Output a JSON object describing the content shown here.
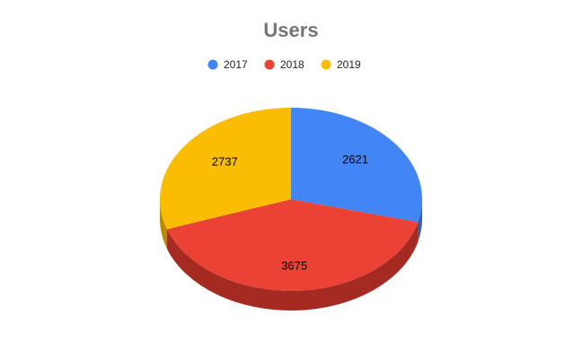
{
  "chart_data": {
    "type": "pie",
    "style": "3d",
    "title": "Users",
    "legend_position": "top",
    "categories": [
      "2017",
      "2018",
      "2019"
    ],
    "values": [
      2621,
      3675,
      2737
    ],
    "colors": [
      "#4285f4",
      "#ea4335",
      "#fbbc04"
    ],
    "side_colors": [
      "#2f5fae",
      "#a52a22",
      "#b98b03"
    ],
    "data_labels": [
      "2621",
      "3675",
      "2737"
    ]
  }
}
